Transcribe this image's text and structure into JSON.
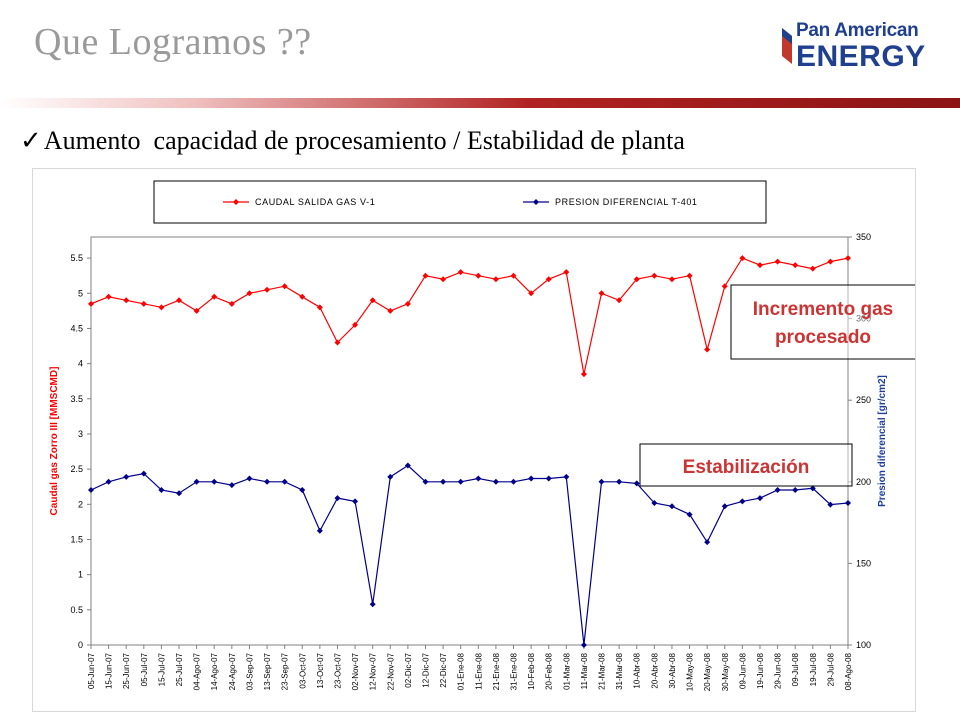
{
  "slide": {
    "title": "Que Logramos ??",
    "bullet": "Aumento  capacidad de procesamiento / Estabilidad de planta",
    "check_icon": "check-icon"
  },
  "logo": {
    "line1": "Pan American",
    "line2": "ENERGY",
    "color": "#1f3f8f"
  },
  "annotations": {
    "increment": [
      "Incremento gas",
      "procesado"
    ],
    "stability": "Estabilización",
    "color": "#cc3333"
  },
  "chart_data": {
    "type": "line",
    "legend_placement": "top",
    "xlabel": "",
    "ylabel": "Caudal gas Zorro III [MMSCMD]",
    "y2label": "Presion diferencial [gr/cm2]",
    "ylim": [
      0,
      5.8
    ],
    "y2lim": [
      100,
      350
    ],
    "yticks": [
      "0",
      "0.5",
      "1",
      "1.5",
      "2",
      "2.5",
      "3",
      "3.5",
      "4",
      "4.5",
      "5",
      "5.5"
    ],
    "y2ticks": [
      "100",
      "150",
      "200",
      "250",
      "300",
      "350"
    ],
    "categories": [
      "05-Jun-07",
      "15-Jun-07",
      "25-Jun-07",
      "05-Jul-07",
      "15-Jul-07",
      "25-Jul-07",
      "04-Ago-07",
      "14-Ago-07",
      "24-Ago-07",
      "03-Sep-07",
      "13-Sep-07",
      "23-Sep-07",
      "03-Oct-07",
      "13-Oct-07",
      "23-Oct-07",
      "02-Nov-07",
      "12-Nov-07",
      "22-Nov-07",
      "02-Dic-07",
      "12-Dic-07",
      "22-Dic-07",
      "01-Ene-08",
      "11-Ene-08",
      "21-Ene-08",
      "31-Ene-08",
      "10-Feb-08",
      "20-Feb-08",
      "01-Mar-08",
      "11-Mar-08",
      "21-Mar-08",
      "31-Mar-08",
      "10-Abr-08",
      "20-Abr-08",
      "30-Abr-08",
      "10-May-08",
      "20-May-08",
      "30-May-08",
      "09-Jun-08",
      "19-Jun-08",
      "29-Jun-08",
      "09-Jul-08",
      "19-Jul-08",
      "29-Jul-08",
      "08-Ago-08"
    ],
    "series": [
      {
        "name": "CAUDAL SALIDA GAS V-1",
        "axis": "left",
        "color": "#ff0000",
        "marker": "diamond",
        "values": [
          4.85,
          4.95,
          4.9,
          4.85,
          4.8,
          4.9,
          4.75,
          4.95,
          4.85,
          5.0,
          5.05,
          5.1,
          4.95,
          4.8,
          4.3,
          4.55,
          4.9,
          4.75,
          4.85,
          5.25,
          5.2,
          5.3,
          5.25,
          5.2,
          5.25,
          5.0,
          5.2,
          5.3,
          3.85,
          5.0,
          4.9,
          5.2,
          5.25,
          5.2,
          5.25,
          4.2,
          5.1,
          5.5,
          5.4,
          5.45,
          5.4,
          5.35,
          5.45,
          5.5
        ]
      },
      {
        "name": "PRESION DIFERENCIAL T-401",
        "axis": "right",
        "color": "#00008b",
        "marker": "diamond",
        "values": [
          195,
          200,
          203,
          205,
          195,
          193,
          200,
          200,
          198,
          202,
          200,
          200,
          195,
          170,
          190,
          188,
          125,
          203,
          210,
          200,
          200,
          200,
          202,
          200,
          200,
          202,
          202,
          203,
          100,
          200,
          200,
          199,
          187,
          185,
          180,
          163,
          185,
          188,
          190,
          195,
          195,
          196,
          186,
          187
        ]
      }
    ]
  }
}
